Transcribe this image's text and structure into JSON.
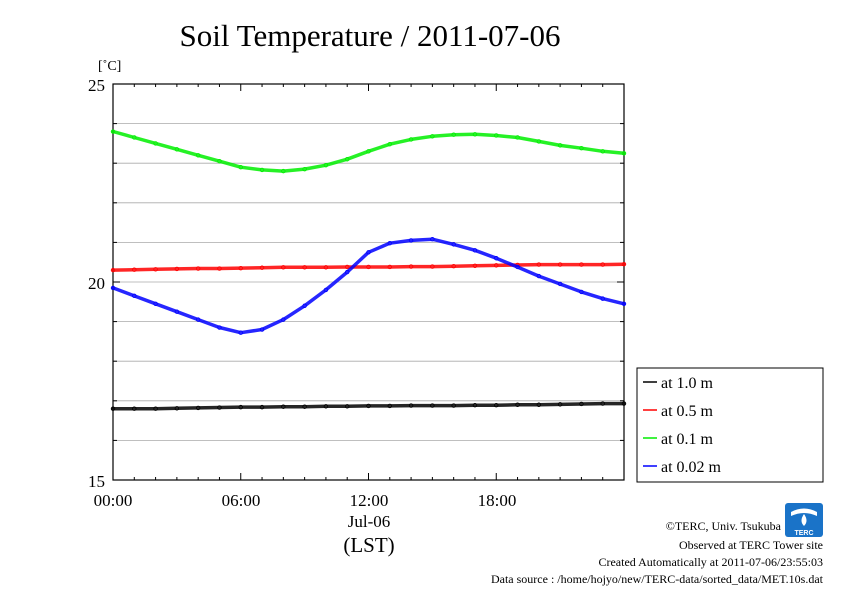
{
  "chart_data": {
    "type": "line",
    "title": "Soil Temperature / 2011-07-06",
    "ylabel": "[˚C]",
    "xlabel": "(LST)",
    "x_date_label": "Jul-06",
    "ylim": [
      15,
      25
    ],
    "yticks": [
      "15",
      "20",
      "25"
    ],
    "xlim": [
      0,
      24
    ],
    "xticks": [
      "00:00",
      "06:00",
      "12:00",
      "18:00"
    ],
    "grid": "horizontal",
    "legend_position": "right",
    "x": [
      0,
      1,
      2,
      3,
      4,
      5,
      6,
      7,
      8,
      9,
      10,
      11,
      12,
      13,
      14,
      15,
      16,
      17,
      18,
      19,
      20,
      21,
      22,
      23,
      24
    ],
    "series": [
      {
        "name": "at 1.0 m",
        "color": "#000000",
        "values": [
          16.8,
          16.8,
          16.8,
          16.81,
          16.82,
          16.83,
          16.84,
          16.84,
          16.85,
          16.85,
          16.86,
          16.86,
          16.87,
          16.87,
          16.88,
          16.88,
          16.88,
          16.89,
          16.89,
          16.9,
          16.9,
          16.91,
          16.92,
          16.93,
          16.93
        ]
      },
      {
        "name": "at 0.5 m",
        "color": "#ff0000",
        "values": [
          20.3,
          20.31,
          20.32,
          20.33,
          20.34,
          20.34,
          20.35,
          20.36,
          20.37,
          20.37,
          20.37,
          20.38,
          20.38,
          20.38,
          20.39,
          20.39,
          20.4,
          20.41,
          20.42,
          20.43,
          20.44,
          20.44,
          20.44,
          20.44,
          20.45
        ]
      },
      {
        "name": "at 0.1 m",
        "color": "#00ee00",
        "values": [
          23.8,
          23.65,
          23.5,
          23.35,
          23.2,
          23.05,
          22.9,
          22.83,
          22.8,
          22.85,
          22.95,
          23.1,
          23.3,
          23.48,
          23.6,
          23.68,
          23.72,
          23.73,
          23.7,
          23.65,
          23.55,
          23.45,
          23.38,
          23.3,
          23.25
        ]
      },
      {
        "name": "at 0.02 m",
        "color": "#0000ff",
        "values": [
          19.85,
          19.65,
          19.45,
          19.25,
          19.05,
          18.85,
          18.72,
          18.8,
          19.05,
          19.4,
          19.8,
          20.25,
          20.75,
          20.98,
          21.05,
          21.08,
          20.95,
          20.8,
          20.6,
          20.38,
          20.15,
          19.95,
          19.75,
          19.58,
          19.45
        ]
      }
    ]
  },
  "credits": {
    "copyright": "©TERC, Univ. Tsukuba",
    "observed": "Observed at TERC Tower site",
    "created": "Created Automatically at 2011-07-06/23:55:03",
    "source": "Data source : /home/hojyo/new/TERC-data/sorted_data/MET.10s.dat",
    "logo_text": "TERC"
  }
}
